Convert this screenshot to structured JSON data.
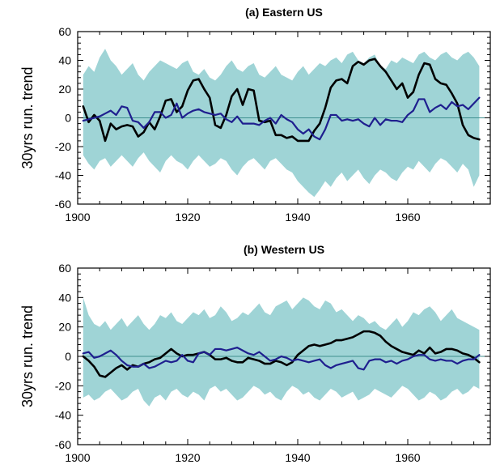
{
  "chart_data": [
    {
      "type": "line",
      "title": "(a) Eastern US",
      "xlabel": "",
      "ylabel": "30yrs run. trend",
      "xlim": [
        1900,
        1975
      ],
      "ylim": [
        -60,
        60
      ],
      "xticks": [
        1900,
        1920,
        1940,
        1960
      ],
      "yticks": [
        -60,
        -40,
        -20,
        0,
        20,
        40,
        60
      ],
      "zero_line": true,
      "colors": {
        "band": "#9fd4d6",
        "black": "#000000",
        "blue": "#1f1f8f",
        "zero": "#3f8f8f"
      },
      "band": {
        "x": [
          1901,
          1902,
          1903,
          1904,
          1905,
          1906,
          1907,
          1908,
          1909,
          1910,
          1911,
          1912,
          1913,
          1914,
          1915,
          1916,
          1917,
          1918,
          1919,
          1920,
          1921,
          1922,
          1923,
          1924,
          1925,
          1926,
          1927,
          1928,
          1929,
          1930,
          1931,
          1932,
          1933,
          1934,
          1935,
          1936,
          1937,
          1938,
          1939,
          1940,
          1941,
          1942,
          1943,
          1944,
          1945,
          1946,
          1947,
          1948,
          1949,
          1950,
          1951,
          1952,
          1953,
          1954,
          1955,
          1956,
          1957,
          1958,
          1959,
          1960,
          1961,
          1962,
          1963,
          1964,
          1965,
          1966,
          1967,
          1968,
          1969,
          1970,
          1971,
          1972,
          1973
        ],
        "upper": [
          30,
          36,
          32,
          42,
          48,
          40,
          36,
          30,
          34,
          38,
          30,
          26,
          32,
          36,
          40,
          38,
          36,
          34,
          38,
          40,
          32,
          30,
          34,
          28,
          26,
          30,
          36,
          40,
          34,
          32,
          36,
          38,
          30,
          28,
          32,
          36,
          30,
          28,
          26,
          32,
          36,
          30,
          34,
          38,
          36,
          40,
          42,
          38,
          44,
          46,
          40,
          38,
          42,
          44,
          36,
          34,
          40,
          38,
          42,
          40,
          38,
          44,
          46,
          42,
          40,
          44,
          46,
          42,
          40,
          44,
          46,
          42,
          36
        ],
        "lower": [
          -26,
          -32,
          -36,
          -30,
          -28,
          -34,
          -30,
          -26,
          -30,
          -34,
          -28,
          -24,
          -30,
          -34,
          -38,
          -30,
          -26,
          -30,
          -32,
          -36,
          -30,
          -26,
          -30,
          -34,
          -32,
          -28,
          -30,
          -36,
          -40,
          -34,
          -30,
          -28,
          -32,
          -36,
          -30,
          -28,
          -32,
          -36,
          -38,
          -44,
          -48,
          -52,
          -55,
          -50,
          -44,
          -48,
          -42,
          -38,
          -44,
          -40,
          -36,
          -42,
          -46,
          -40,
          -36,
          -38,
          -42,
          -44,
          -38,
          -34,
          -36,
          -30,
          -34,
          -38,
          -32,
          -28,
          -30,
          -34,
          -38,
          -32,
          -36,
          -48,
          -40
        ]
      },
      "series": [
        {
          "color": "black",
          "x": [
            1901,
            1902,
            1903,
            1904,
            1905,
            1906,
            1907,
            1908,
            1909,
            1910,
            1911,
            1912,
            1913,
            1914,
            1915,
            1916,
            1917,
            1918,
            1919,
            1920,
            1921,
            1922,
            1923,
            1924,
            1925,
            1926,
            1927,
            1928,
            1929,
            1930,
            1931,
            1932,
            1933,
            1934,
            1935,
            1936,
            1937,
            1938,
            1939,
            1940,
            1941,
            1942,
            1943,
            1944,
            1945,
            1946,
            1947,
            1948,
            1949,
            1950,
            1951,
            1952,
            1953,
            1954,
            1955,
            1956,
            1957,
            1958,
            1959,
            1960,
            1961,
            1962,
            1963,
            1964,
            1965,
            1966,
            1967,
            1968,
            1969,
            1970,
            1971,
            1972,
            1973
          ],
          "values": [
            8,
            -3,
            2,
            -2,
            -16,
            -4,
            -8,
            -6,
            -5,
            -6,
            -13,
            -10,
            -3,
            -8,
            1,
            12,
            13,
            4,
            8,
            19,
            26,
            27,
            20,
            14,
            -5,
            -7,
            2,
            15,
            20,
            9,
            20,
            19,
            -2,
            -3,
            -2,
            -12,
            -12,
            -14,
            -13,
            -16,
            -16,
            -16,
            -9,
            -4,
            7,
            21,
            26,
            27,
            24,
            36,
            39,
            37,
            40,
            41,
            36,
            32,
            26,
            20,
            24,
            14,
            18,
            30,
            38,
            37,
            27,
            24,
            23,
            17,
            10,
            -5,
            -12,
            -14,
            -15
          ]
        },
        {
          "color": "blue",
          "x": [
            1901,
            1902,
            1903,
            1904,
            1905,
            1906,
            1907,
            1908,
            1909,
            1910,
            1911,
            1912,
            1913,
            1914,
            1915,
            1916,
            1917,
            1918,
            1919,
            1920,
            1921,
            1922,
            1923,
            1924,
            1925,
            1926,
            1927,
            1928,
            1929,
            1930,
            1931,
            1932,
            1933,
            1934,
            1935,
            1936,
            1937,
            1938,
            1939,
            1940,
            1941,
            1942,
            1943,
            1944,
            1945,
            1946,
            1947,
            1948,
            1949,
            1950,
            1951,
            1952,
            1953,
            1954,
            1955,
            1956,
            1957,
            1958,
            1959,
            1960,
            1961,
            1962,
            1963,
            1964,
            1965,
            1966,
            1967,
            1968,
            1969,
            1970,
            1971,
            1972,
            1973
          ],
          "values": [
            -2,
            -1,
            0,
            1,
            3,
            5,
            2,
            8,
            7,
            -2,
            -3,
            -7,
            -3,
            4,
            4,
            0,
            2,
            10,
            0,
            3,
            5,
            6,
            4,
            3,
            2,
            3,
            -1,
            -3,
            1,
            -4,
            -4,
            -4,
            -5,
            -2,
            0,
            -4,
            2,
            -1,
            -3,
            -8,
            -11,
            -8,
            -13,
            -15,
            -8,
            2,
            2,
            -2,
            -1,
            -2,
            -1,
            -4,
            -6,
            0,
            -5,
            -1,
            -2,
            -2,
            -3,
            2,
            5,
            13,
            13,
            4,
            7,
            9,
            6,
            11,
            8,
            9,
            6,
            10,
            14
          ]
        }
      ]
    },
    {
      "type": "line",
      "title": "(b) Western US",
      "xlabel": "",
      "ylabel": "30yrs run. trend",
      "xlim": [
        1900,
        1975
      ],
      "ylim": [
        -60,
        60
      ],
      "xticks": [
        1900,
        1920,
        1940,
        1960
      ],
      "yticks": [
        -60,
        -40,
        -20,
        0,
        20,
        40,
        60
      ],
      "zero_line": true,
      "colors": {
        "band": "#9fd4d6",
        "black": "#000000",
        "blue": "#1f1f8f",
        "zero": "#3f8f8f"
      },
      "band": {
        "x": [
          1901,
          1902,
          1903,
          1904,
          1905,
          1906,
          1907,
          1908,
          1909,
          1910,
          1911,
          1912,
          1913,
          1914,
          1915,
          1916,
          1917,
          1918,
          1919,
          1920,
          1921,
          1922,
          1923,
          1924,
          1925,
          1926,
          1927,
          1928,
          1929,
          1930,
          1931,
          1932,
          1933,
          1934,
          1935,
          1936,
          1937,
          1938,
          1939,
          1940,
          1941,
          1942,
          1943,
          1944,
          1945,
          1946,
          1947,
          1948,
          1949,
          1950,
          1951,
          1952,
          1953,
          1954,
          1955,
          1956,
          1957,
          1958,
          1959,
          1960,
          1961,
          1962,
          1963,
          1964,
          1965,
          1966,
          1967,
          1968,
          1969,
          1970,
          1971,
          1972,
          1973
        ],
        "upper": [
          40,
          28,
          22,
          20,
          24,
          18,
          22,
          26,
          20,
          24,
          28,
          22,
          18,
          22,
          28,
          26,
          30,
          24,
          22,
          26,
          30,
          28,
          32,
          26,
          28,
          34,
          30,
          24,
          26,
          30,
          28,
          32,
          36,
          30,
          28,
          34,
          36,
          38,
          32,
          36,
          40,
          38,
          34,
          32,
          38,
          36,
          30,
          32,
          28,
          24,
          28,
          26,
          22,
          24,
          20,
          18,
          22,
          26,
          20,
          24,
          30,
          28,
          32,
          34,
          30,
          24,
          28,
          32,
          26,
          24,
          22,
          20,
          18
        ],
        "lower": [
          -28,
          -26,
          -30,
          -28,
          -24,
          -22,
          -26,
          -30,
          -28,
          -24,
          -22,
          -30,
          -34,
          -28,
          -26,
          -30,
          -24,
          -22,
          -26,
          -28,
          -24,
          -26,
          -30,
          -22,
          -20,
          -24,
          -22,
          -26,
          -30,
          -28,
          -24,
          -20,
          -22,
          -26,
          -24,
          -28,
          -30,
          -24,
          -20,
          -22,
          -26,
          -24,
          -28,
          -30,
          -26,
          -22,
          -24,
          -28,
          -26,
          -24,
          -30,
          -28,
          -26,
          -22,
          -24,
          -26,
          -28,
          -24,
          -20,
          -22,
          -26,
          -30,
          -28,
          -24,
          -26,
          -30,
          -28,
          -24,
          -22,
          -26,
          -24,
          -20,
          -22
        ]
      },
      "series": [
        {
          "color": "black",
          "x": [
            1901,
            1902,
            1903,
            1904,
            1905,
            1906,
            1907,
            1908,
            1909,
            1910,
            1911,
            1912,
            1913,
            1914,
            1915,
            1916,
            1917,
            1918,
            1919,
            1920,
            1921,
            1922,
            1923,
            1924,
            1925,
            1926,
            1927,
            1928,
            1929,
            1930,
            1931,
            1932,
            1933,
            1934,
            1935,
            1936,
            1937,
            1938,
            1939,
            1940,
            1941,
            1942,
            1943,
            1944,
            1945,
            1946,
            1947,
            1948,
            1949,
            1950,
            1951,
            1952,
            1953,
            1954,
            1955,
            1956,
            1957,
            1958,
            1959,
            1960,
            1961,
            1962,
            1963,
            1964,
            1965,
            1966,
            1967,
            1968,
            1969,
            1970,
            1971,
            1972,
            1973
          ],
          "values": [
            0,
            -3,
            -7,
            -13,
            -14,
            -11,
            -8,
            -6,
            -9,
            -6,
            -7,
            -5,
            -4,
            -2,
            -1,
            2,
            5,
            2,
            0,
            1,
            1,
            2,
            3,
            1,
            -2,
            -2,
            -1,
            -3,
            -4,
            -4,
            -1,
            -2,
            -3,
            -5,
            -5,
            -3,
            -4,
            -6,
            -4,
            1,
            4,
            7,
            8,
            7,
            8,
            9,
            11,
            11,
            12,
            13,
            15,
            17,
            17,
            16,
            14,
            10,
            7,
            5,
            3,
            2,
            1,
            4,
            2,
            6,
            2,
            3,
            5,
            5,
            4,
            2,
            1,
            -1,
            -4
          ]
        },
        {
          "color": "blue",
          "x": [
            1901,
            1902,
            1903,
            1904,
            1905,
            1906,
            1907,
            1908,
            1909,
            1910,
            1911,
            1912,
            1913,
            1914,
            1915,
            1916,
            1917,
            1918,
            1919,
            1920,
            1921,
            1922,
            1923,
            1924,
            1925,
            1926,
            1927,
            1928,
            1929,
            1930,
            1931,
            1932,
            1933,
            1934,
            1935,
            1936,
            1937,
            1938,
            1939,
            1940,
            1941,
            1942,
            1943,
            1944,
            1945,
            1946,
            1947,
            1948,
            1949,
            1950,
            1951,
            1952,
            1953,
            1954,
            1955,
            1956,
            1957,
            1958,
            1959,
            1960,
            1961,
            1962,
            1963,
            1964,
            1965,
            1966,
            1967,
            1968,
            1969,
            1970,
            1971,
            1972,
            1973
          ],
          "values": [
            2,
            3,
            -1,
            0,
            2,
            4,
            1,
            -3,
            -6,
            -7,
            -7,
            -5,
            -8,
            -7,
            -5,
            -3,
            -4,
            -3,
            1,
            -3,
            -4,
            2,
            3,
            1,
            5,
            5,
            4,
            5,
            6,
            4,
            2,
            1,
            3,
            0,
            -3,
            -2,
            0,
            -1,
            -3,
            -2,
            -3,
            -4,
            -3,
            -2,
            -6,
            -8,
            -6,
            -5,
            -4,
            -3,
            -8,
            -9,
            -3,
            -2,
            -2,
            -4,
            -3,
            -5,
            -3,
            -2,
            0,
            1,
            1,
            -2,
            -3,
            -2,
            -3,
            -3,
            -5,
            -3,
            -2,
            -2,
            1
          ]
        }
      ]
    }
  ]
}
